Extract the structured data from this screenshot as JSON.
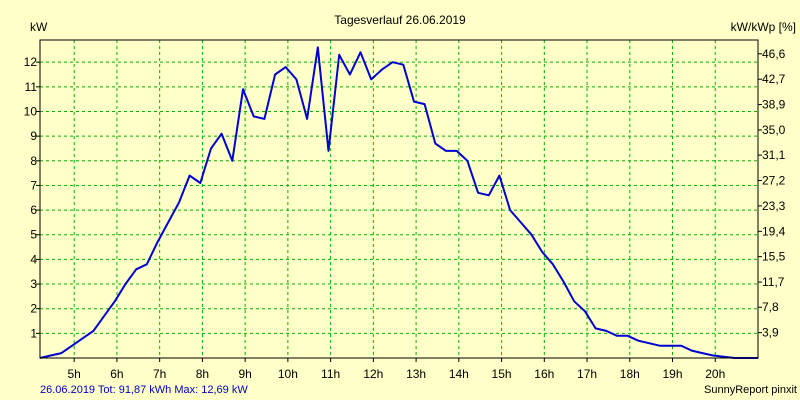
{
  "chart_data": {
    "type": "line",
    "title": "Tagesverlauf 26.06.2019",
    "ylabel_left": "kW",
    "ylabel_right": "kW/kWp [%]",
    "xlim": [
      4.2,
      21.0
    ],
    "ylim": [
      0,
      12.9
    ],
    "x_ticks": [
      5,
      6,
      7,
      8,
      9,
      10,
      11,
      12,
      13,
      14,
      15,
      16,
      17,
      18,
      19,
      20
    ],
    "x_tick_labels": [
      "5h",
      "6h",
      "7h",
      "8h",
      "9h",
      "10h",
      "11h",
      "12h",
      "13h",
      "14h",
      "15h",
      "16h",
      "17h",
      "18h",
      "19h",
      "20h"
    ],
    "y_ticks_left": [
      1,
      2,
      3,
      4,
      5,
      6,
      7,
      8,
      9,
      10,
      11,
      12
    ],
    "y_tick_labels_left": [
      "1",
      "2",
      "3",
      "4",
      "5",
      "6",
      "7",
      "8",
      "9",
      "10",
      "11",
      "12"
    ],
    "y_ticks_right": [
      1.03,
      2.06,
      3.08,
      4.11,
      5.14,
      6.17,
      7.2,
      8.23,
      9.25,
      10.28,
      11.31,
      12.34
    ],
    "y_tick_labels_right": [
      "3,9",
      "7,8",
      "11,7",
      "15,5",
      "19,4",
      "23,3",
      "27,2",
      "31,1",
      "35,0",
      "38,9",
      "42,7",
      "46,6"
    ],
    "grid": true,
    "footer_left": "26.06.2019 Tot: 91,87 kWh Max: 12,69 kW",
    "footer_right": "SunnyReport pinxit",
    "colors": {
      "line": "#0000d0",
      "grid": "#00b400",
      "background": "#ffffc8"
    },
    "series": [
      {
        "x": [
          4.2,
          4.45,
          4.7,
          4.95,
          5.2,
          5.45,
          5.7,
          5.95,
          6.2,
          6.45,
          6.7,
          6.95,
          7.2,
          7.45,
          7.7,
          7.95,
          8.2,
          8.45,
          8.7,
          8.95,
          9.2,
          9.45,
          9.7,
          9.95,
          10.2,
          10.45,
          10.7,
          10.95,
          11.2,
          11.45,
          11.7,
          11.95,
          12.2,
          12.45,
          12.7,
          12.95,
          13.2,
          13.45,
          13.7,
          13.95,
          14.2,
          14.45,
          14.7,
          14.95,
          15.2,
          15.45,
          15.7,
          15.95,
          16.2,
          16.45,
          16.7,
          16.95,
          17.2,
          17.45,
          17.7,
          17.95,
          18.2,
          18.45,
          18.7,
          18.95,
          19.2,
          19.45,
          19.7,
          19.95,
          20.2,
          20.45,
          20.7,
          21.0
        ],
        "values": [
          0.0,
          0.1,
          0.2,
          0.5,
          0.8,
          1.1,
          1.7,
          2.3,
          3.0,
          3.6,
          3.8,
          4.7,
          5.5,
          6.3,
          7.4,
          7.1,
          8.5,
          9.1,
          8.0,
          10.9,
          9.8,
          9.7,
          11.5,
          11.8,
          11.3,
          9.7,
          12.6,
          8.4,
          12.3,
          11.5,
          12.4,
          11.3,
          11.7,
          12.0,
          11.9,
          10.4,
          10.3,
          8.7,
          8.4,
          8.4,
          8.0,
          6.7,
          6.6,
          7.4,
          6.0,
          5.5,
          5.0,
          4.3,
          3.8,
          3.1,
          2.3,
          1.9,
          1.2,
          1.1,
          0.9,
          0.9,
          0.7,
          0.6,
          0.5,
          0.5,
          0.5,
          0.3,
          0.2,
          0.1,
          0.05,
          0.0,
          0.0,
          0.0
        ]
      }
    ]
  }
}
